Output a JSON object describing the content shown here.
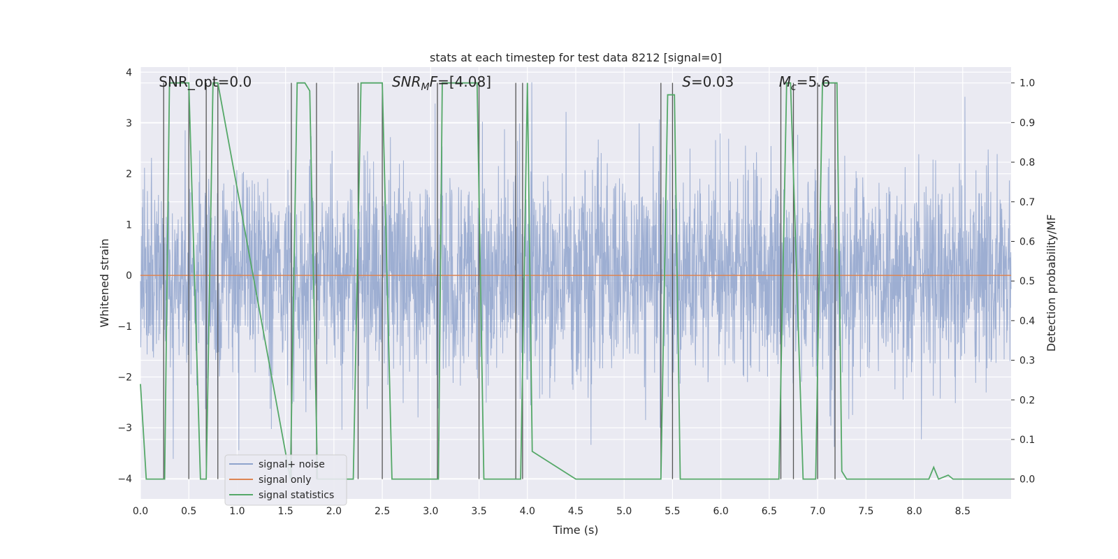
{
  "chart_data": {
    "type": "line",
    "title": "stats at each timestep for test data 8212 [signal=0]",
    "xlabel": "Time (s)",
    "ylabel": "Whitened strain",
    "ylabel_right": "Detection probability/MF",
    "xlim": [
      0.0,
      9.0
    ],
    "ylim": [
      -4.4,
      4.1
    ],
    "ylim_right": [
      -0.05,
      1.04
    ],
    "x_ticks": [
      "0.0",
      "0.5",
      "1.0",
      "1.5",
      "2.0",
      "2.5",
      "3.0",
      "3.5",
      "4.0",
      "4.5",
      "5.0",
      "5.5",
      "6.0",
      "6.5",
      "7.0",
      "7.5",
      "8.0",
      "8.5"
    ],
    "y_ticks": [
      "−4",
      "−3",
      "−2",
      "−1",
      "0",
      "1",
      "2",
      "3",
      "4"
    ],
    "y_ticks_right": [
      "0.0",
      "0.1",
      "0.2",
      "0.3",
      "0.4",
      "0.5",
      "0.6",
      "0.7",
      "0.8",
      "0.9",
      "1.0"
    ],
    "annotations": [
      {
        "parts": [
          {
            "text": "SNR_opt=0.0",
            "italic": false
          }
        ],
        "x": 0.19
      },
      {
        "parts": [
          {
            "text": "SNR",
            "italic": true
          },
          {
            "text": "M",
            "italic": true,
            "sub": true
          },
          {
            "text": "F",
            "italic": true
          },
          {
            "text": "=[4.08]",
            "italic": false
          }
        ],
        "x": 2.6
      },
      {
        "parts": [
          {
            "text": "S",
            "italic": true
          },
          {
            "text": "=0.03",
            "italic": false
          }
        ],
        "x": 5.6
      },
      {
        "parts": [
          {
            "text": "M",
            "italic": true
          },
          {
            "text": "c",
            "italic": true,
            "sub": true
          },
          {
            "text": "=5.6",
            "italic": false
          }
        ],
        "x": 6.6
      }
    ],
    "series": [
      {
        "name": "signal+ noise",
        "color": "#8fa3cc",
        "kind": "noise",
        "sigma": 1.0,
        "n_points": 3000
      },
      {
        "name": "signal only",
        "color": "#dd8452",
        "values_constant": 0.0
      },
      {
        "name": "signal statistics",
        "color": "#55a868",
        "x": [
          0.0,
          0.06,
          0.25,
          0.3,
          0.5,
          0.62,
          0.68,
          0.75,
          0.8,
          1.55,
          1.62,
          1.7,
          1.75,
          1.83,
          2.2,
          2.28,
          2.5,
          2.6,
          3.0,
          3.08,
          3.12,
          3.48,
          3.55,
          3.85,
          3.93,
          4.0,
          4.05,
          4.5,
          5.38,
          5.45,
          5.52,
          5.58,
          6.6,
          6.68,
          6.72,
          6.85,
          6.98,
          7.05,
          7.2,
          7.25,
          7.3,
          7.8,
          8.15,
          8.2,
          8.25,
          8.35,
          8.4,
          9.0
        ],
        "y": [
          0.24,
          0.0,
          0.0,
          1.0,
          1.0,
          0.0,
          0.0,
          1.0,
          1.0,
          0.0,
          1.0,
          1.0,
          0.98,
          0.0,
          0.0,
          1.0,
          1.0,
          0.0,
          0.0,
          0.0,
          1.0,
          1.0,
          0.0,
          0.0,
          0.0,
          1.0,
          0.07,
          0.0,
          0.0,
          0.97,
          0.97,
          0.0,
          0.0,
          1.0,
          1.0,
          0.0,
          0.0,
          1.0,
          1.0,
          0.02,
          0.0,
          0.0,
          0.0,
          0.03,
          0.0,
          0.01,
          0.0,
          0.0
        ]
      }
    ],
    "vlines": [
      0.24,
      0.5,
      0.68,
      0.8,
      1.56,
      1.82,
      2.25,
      2.5,
      3.07,
      3.5,
      3.88,
      3.95,
      5.38,
      5.5,
      6.62,
      6.75,
      7.0,
      7.18
    ],
    "legend_position": "lower-left",
    "grid": true
  }
}
